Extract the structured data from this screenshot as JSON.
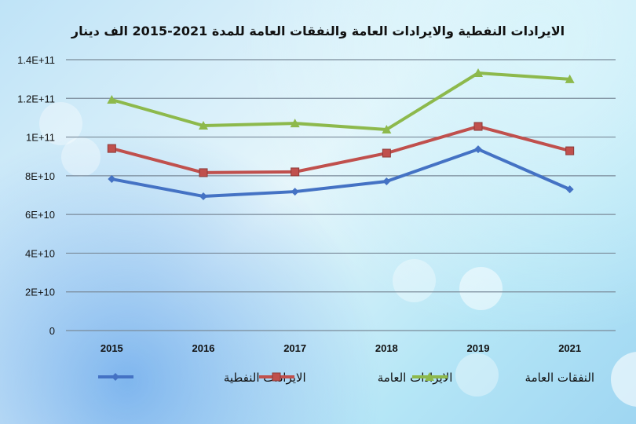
{
  "chart_data": {
    "type": "line",
    "title": "الايرادات النفطية والايرادات العامة والنفقات العامة للمدة 2021-2015 الف دينار",
    "categories": [
      "2015",
      "2016",
      "2017",
      "2018",
      "2019",
      "2021"
    ],
    "ylim": [
      0,
      140000000000
    ],
    "yticks": [
      0,
      20000000000,
      40000000000,
      60000000000,
      80000000000,
      100000000000,
      120000000000,
      140000000000
    ],
    "ytick_labels": [
      "0",
      "2E+10",
      "4E+10",
      "6E+10",
      "8E+10",
      "1E+11",
      "1.2E+11",
      "1.4E+11"
    ],
    "grid": true,
    "legend_position": "bottom",
    "series": [
      {
        "name": "الايرادات النفطية",
        "color": "#4472c4",
        "marker": "diamond",
        "values": [
          78300000000,
          69400000000,
          71800000000,
          77100000000,
          93700000000,
          73000000000
        ]
      },
      {
        "name": "الايرادات العامة",
        "color": "#c0504d",
        "marker": "square",
        "values": [
          94100000000,
          81600000000,
          82000000000,
          91700000000,
          105500000000,
          92900000000
        ]
      },
      {
        "name": "النفقات العامة",
        "color": "#8db94c",
        "marker": "triangle",
        "values": [
          119300000000,
          105900000000,
          107100000000,
          103900000000,
          133100000000,
          129900000000
        ]
      }
    ]
  }
}
